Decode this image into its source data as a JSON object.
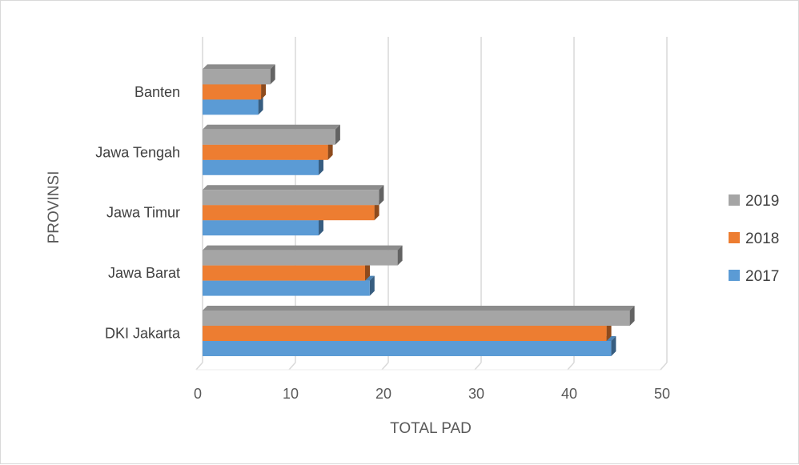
{
  "chart_data": {
    "type": "bar",
    "orientation": "horizontal",
    "categories": [
      "DKI Jakarta",
      "Jawa Barat",
      "Jawa Timur",
      "Jawa Tengah",
      "Banten"
    ],
    "series": [
      {
        "name": "2017",
        "color": "#5B9BD5",
        "values": [
          44,
          18,
          12.5,
          12.5,
          6
        ]
      },
      {
        "name": "2018",
        "color": "#ED7D31",
        "values": [
          43.5,
          17.5,
          18.5,
          13.5,
          6.3
        ]
      },
      {
        "name": "2019",
        "color": "#A5A5A5",
        "values": [
          46,
          21,
          19,
          14.3,
          7.3
        ]
      }
    ],
    "xlabel": "TOTAL PAD",
    "ylabel": "PROVINSI",
    "xlim": [
      0,
      50
    ],
    "xticks": [
      0,
      10,
      20,
      30,
      40,
      50
    ],
    "grid": true,
    "legend_position": "right",
    "legend_order": [
      "2019",
      "2018",
      "2017"
    ]
  }
}
